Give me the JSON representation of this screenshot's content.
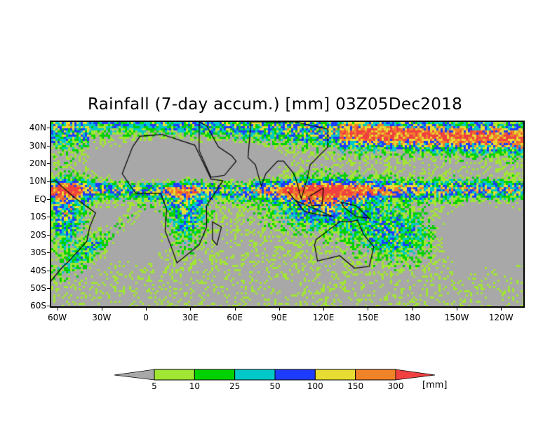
{
  "title": "Rainfall (7-day accum.) [mm] 03Z05Dec2018",
  "map": {
    "lon_range": [
      -65,
      256
    ],
    "lat_range": [
      -61,
      44
    ],
    "background_color": "#a8a8a8",
    "lat_labels": [
      {
        "lat": 40,
        "label": "40N"
      },
      {
        "lat": 30,
        "label": "30N"
      },
      {
        "lat": 20,
        "label": "20N"
      },
      {
        "lat": 10,
        "label": "10N"
      },
      {
        "lat": 0,
        "label": "EQ"
      },
      {
        "lat": -10,
        "label": "10S"
      },
      {
        "lat": -20,
        "label": "20S"
      },
      {
        "lat": -30,
        "label": "30S"
      },
      {
        "lat": -40,
        "label": "40S"
      },
      {
        "lat": -50,
        "label": "50S"
      },
      {
        "lat": -60,
        "label": "60S"
      }
    ],
    "lon_labels": [
      {
        "lon": -60,
        "label": "60W"
      },
      {
        "lon": -30,
        "label": "30W"
      },
      {
        "lon": 0,
        "label": "0"
      },
      {
        "lon": 30,
        "label": "30E"
      },
      {
        "lon": 60,
        "label": "60E"
      },
      {
        "lon": 90,
        "label": "90E"
      },
      {
        "lon": 120,
        "label": "120E"
      },
      {
        "lon": 150,
        "label": "150E"
      },
      {
        "lon": 180,
        "label": "180"
      },
      {
        "lon": 210,
        "label": "150W"
      },
      {
        "lon": 240,
        "label": "120W"
      }
    ]
  },
  "colorbar": {
    "unit": "[mm]",
    "under_color": "#a8a8a8",
    "over_color": "#f04040",
    "bins": [
      {
        "color": "#a0e632"
      },
      {
        "color": "#00d200"
      },
      {
        "color": "#00c8c8"
      },
      {
        "color": "#1e3cff"
      },
      {
        "color": "#e6dc32"
      },
      {
        "color": "#f08228"
      }
    ],
    "levels": [
      "5",
      "10",
      "25",
      "50",
      "100",
      "150",
      "300"
    ]
  }
}
